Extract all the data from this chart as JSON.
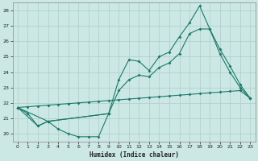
{
  "xlabel": "Humidex (Indice chaleur)",
  "line_color": "#1a7a6a",
  "bg_color": "#cce8e4",
  "grid_color": "#b0ccc8",
  "yticks": [
    20,
    21,
    22,
    23,
    24,
    25,
    26,
    27,
    28
  ],
  "xticks": [
    0,
    1,
    2,
    3,
    4,
    5,
    6,
    7,
    8,
    9,
    10,
    11,
    12,
    13,
    14,
    15,
    16,
    17,
    18,
    19,
    20,
    21,
    22,
    23
  ],
  "xlim": [
    -0.5,
    23.5
  ],
  "ylim": [
    19.5,
    28.5
  ],
  "line1_x": [
    0,
    1,
    2,
    3,
    4,
    5,
    6,
    7,
    8,
    9
  ],
  "line1_y": [
    21.7,
    21.3,
    20.5,
    20.8,
    20.3,
    20.0,
    19.8,
    19.8,
    19.8,
    21.3
  ],
  "line2_x": [
    0,
    1,
    2,
    3,
    4,
    5,
    6,
    7,
    8,
    9,
    10,
    11,
    12,
    13,
    14,
    15,
    16,
    17,
    18,
    19,
    20,
    21,
    22,
    23
  ],
  "line2_y": [
    21.7,
    21.75,
    21.8,
    21.85,
    21.9,
    21.95,
    22.0,
    22.05,
    22.1,
    22.15,
    22.2,
    22.25,
    22.3,
    22.35,
    22.4,
    22.45,
    22.5,
    22.55,
    22.6,
    22.65,
    22.7,
    22.75,
    22.8,
    22.3
  ],
  "line3_x": [
    0,
    2,
    3,
    9,
    10,
    11,
    12,
    13,
    14,
    15,
    16,
    17,
    18,
    19,
    20,
    21,
    22,
    23
  ],
  "line3_y": [
    21.7,
    20.5,
    20.8,
    21.3,
    23.5,
    24.8,
    24.7,
    24.1,
    25.0,
    25.3,
    26.3,
    27.2,
    28.3,
    26.8,
    25.5,
    24.4,
    23.2,
    22.3
  ],
  "line4_x": [
    0,
    3,
    9,
    10,
    11,
    12,
    13,
    14,
    15,
    16,
    17,
    18,
    19,
    20,
    21,
    22,
    23
  ],
  "line4_y": [
    21.7,
    20.8,
    21.3,
    22.8,
    23.5,
    23.8,
    23.7,
    24.3,
    24.6,
    25.2,
    26.5,
    26.8,
    26.8,
    25.2,
    24.0,
    23.0,
    22.3
  ]
}
